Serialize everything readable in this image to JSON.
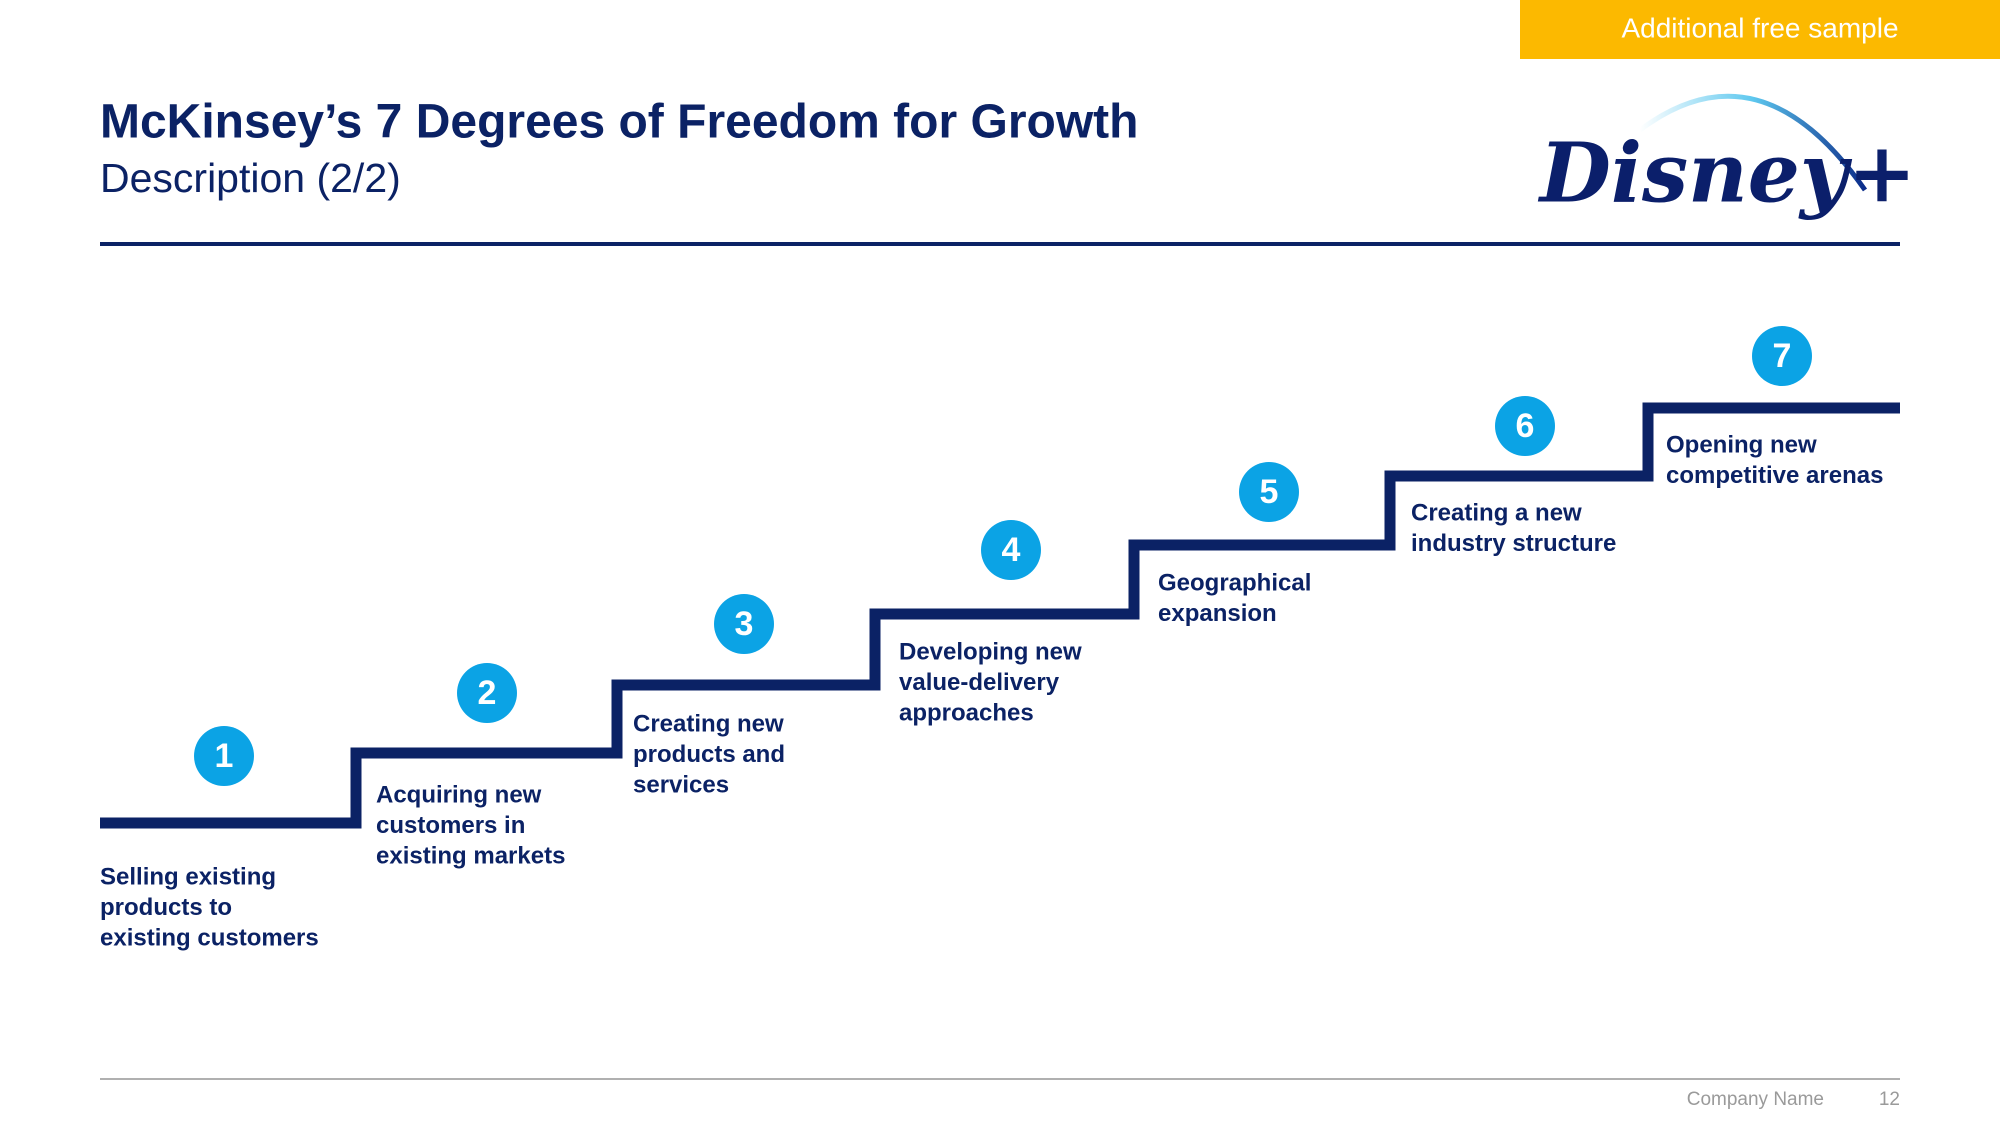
{
  "badge": "Additional free sample",
  "header": {
    "title": "McKinsey’s 7 Degrees of Freedom for Growth",
    "subtitle": "Description (2/2)",
    "logo": "Disney+"
  },
  "steps": [
    {
      "number": "1",
      "lines": [
        "Selling existing",
        "products to",
        "existing customers"
      ]
    },
    {
      "number": "2",
      "lines": [
        "Acquiring new",
        "customers in",
        "existing markets"
      ]
    },
    {
      "number": "3",
      "lines": [
        "Creating new",
        "products and",
        "services"
      ]
    },
    {
      "number": "4",
      "lines": [
        "Developing new",
        "value-delivery",
        "approaches"
      ]
    },
    {
      "number": "5",
      "lines": [
        "Geographical",
        "expansion"
      ]
    },
    {
      "number": "6",
      "lines": [
        "Creating a new",
        "industry structure"
      ]
    },
    {
      "number": "7",
      "lines": [
        "Opening new",
        "competitive arenas"
      ]
    }
  ],
  "footer": {
    "company": "Company Name",
    "page": "12"
  }
}
